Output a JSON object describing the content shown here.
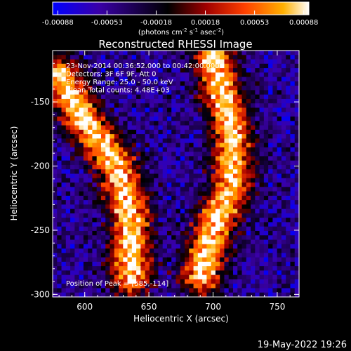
{
  "colorbar": {
    "ticks": [
      "-0.00088",
      "-0.00053",
      "-0.00018",
      "0.00018",
      "0.00053",
      "0.00088"
    ],
    "units_main": "(photons cm",
    "units_sup1": "-2",
    "units_mid1": " s",
    "units_sup2": "-1",
    "units_mid2": " asec",
    "units_sup3": "-2",
    "units_end": ")"
  },
  "plot": {
    "title": "Reconstructed RHESSI Image",
    "annotation_lines": [
      "23-Nov-2014 00:36:52.000 to 00:42:00.000",
      "Detectors: 3F 6F 9F, Att 0",
      "Energy Range: 25.0 - 50.0 keV",
      "Clean     Total counts: 4.48E+03"
    ],
    "peak_label": "Position of Peak = [585,-114]",
    "timestamp": "19-May-2022 19:26"
  },
  "chart_data": {
    "type": "heatmap",
    "title": "Reconstructed RHESSI Image",
    "xlabel": "Heliocentric X (arcsec)",
    "ylabel": "Heliocentric Y (arcsec)",
    "xlim": [
      575,
      767
    ],
    "ylim": [
      -302,
      -110
    ],
    "xticks": [
      600,
      650,
      700,
      750
    ],
    "yticks": [
      -150,
      -200,
      -250,
      -300
    ],
    "colorscale": {
      "min": -0.00088,
      "max": 0.00088,
      "colors": [
        "#0000ff",
        "#3a00a8",
        "#000000",
        "#a00000",
        "#ff4000",
        "#ffb000",
        "#ffffff"
      ]
    },
    "bright_ridges": [
      {
        "name": "left",
        "path": [
          [
            580,
            -130
          ],
          [
            600,
            -165
          ],
          [
            625,
            -200
          ],
          [
            636,
            -240
          ],
          [
            636,
            -285
          ]
        ]
      },
      {
        "name": "right",
        "path": [
          [
            700,
            -115
          ],
          [
            715,
            -175
          ],
          [
            715,
            -215
          ],
          [
            700,
            -250
          ],
          [
            690,
            -285
          ]
        ]
      }
    ]
  }
}
